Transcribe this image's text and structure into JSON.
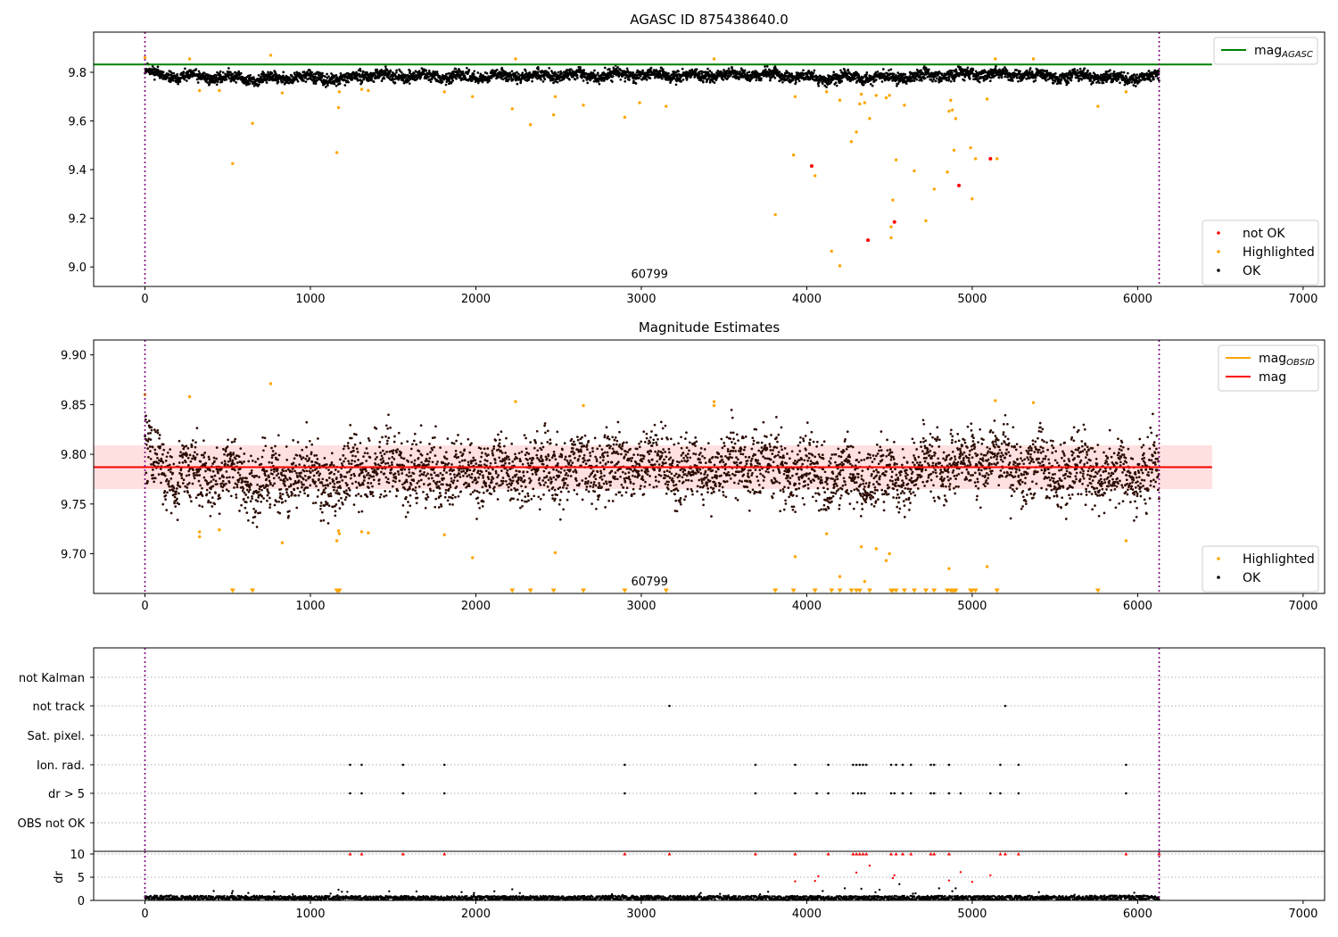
{
  "chart_data": [
    {
      "type": "scatter",
      "title": "AGASC ID 875438640.0",
      "xlim": [
        -310,
        7130
      ],
      "ylim": [
        8.92,
        9.965
      ],
      "xticks": [
        0,
        1000,
        2000,
        3000,
        4000,
        5000,
        6000,
        7000
      ],
      "xtick_labels": [
        "0",
        "1000",
        "2000",
        "3000",
        "4000",
        "5000",
        "6000",
        "7000"
      ],
      "yticks": [
        9.0,
        9.2,
        9.4,
        9.6,
        9.8
      ],
      "ytick_labels": [
        "9.0",
        "9.2",
        "9.4",
        "9.6",
        "9.8"
      ],
      "obs_lines": [
        0,
        6130
      ],
      "annotation": {
        "text": "60799",
        "x": 3050,
        "y": 8.955
      },
      "mag_agasc": 9.832,
      "mag_agasc_color": "#008000",
      "legend_top": [
        {
          "label": "mag",
          "sub": "AGASC",
          "color": "#008000"
        }
      ],
      "legend_bottom": [
        {
          "label": "not OK",
          "color": "#ff0000"
        },
        {
          "label": "Highlighted",
          "color": "#ffa500"
        },
        {
          "label": "OK",
          "color": "#000000"
        }
      ],
      "ok_trend": {
        "x": [
          0,
          100,
          300,
          500,
          700,
          900,
          1100,
          1200,
          1300,
          1500,
          1700,
          1900,
          2100,
          2300,
          2500,
          2700,
          2900,
          3100,
          3300,
          3500,
          3700,
          3900,
          4100,
          4300,
          4500,
          4700,
          4900,
          5100,
          5300,
          5500,
          5700,
          5900,
          6130
        ],
        "y": [
          9.81,
          9.785,
          9.78,
          9.78,
          9.77,
          9.78,
          9.775,
          9.765,
          9.79,
          9.785,
          9.785,
          9.78,
          9.785,
          9.785,
          9.79,
          9.785,
          9.79,
          9.79,
          9.785,
          9.79,
          9.79,
          9.785,
          9.775,
          9.78,
          9.775,
          9.785,
          9.79,
          9.795,
          9.79,
          9.78,
          9.785,
          9.775,
          9.785
        ]
      },
      "highlighted": [
        [
          0,
          9.86
        ],
        [
          270,
          9.855
        ],
        [
          330,
          9.725
        ],
        [
          450,
          9.725
        ],
        [
          530,
          9.425
        ],
        [
          650,
          9.59
        ],
        [
          760,
          9.87
        ],
        [
          830,
          9.715
        ],
        [
          1160,
          9.47
        ],
        [
          1170,
          9.655
        ],
        [
          1175,
          9.72
        ],
        [
          1310,
          9.73
        ],
        [
          1350,
          9.725
        ],
        [
          1810,
          9.72
        ],
        [
          1980,
          9.7
        ],
        [
          2220,
          9.65
        ],
        [
          2240,
          9.855
        ],
        [
          2330,
          9.585
        ],
        [
          2470,
          9.625
        ],
        [
          2480,
          9.7
        ],
        [
          2650,
          9.665
        ],
        [
          2900,
          9.615
        ],
        [
          2990,
          9.675
        ],
        [
          3150,
          9.66
        ],
        [
          3440,
          9.855
        ],
        [
          3810,
          9.215
        ],
        [
          3920,
          9.46
        ],
        [
          3930,
          9.7
        ],
        [
          4050,
          9.375
        ],
        [
          4120,
          9.72
        ],
        [
          4150,
          9.065
        ],
        [
          4200,
          9.005
        ],
        [
          4200,
          9.685
        ],
        [
          4270,
          9.515
        ],
        [
          4300,
          9.555
        ],
        [
          4320,
          9.67
        ],
        [
          4330,
          9.71
        ],
        [
          4350,
          9.675
        ],
        [
          4380,
          9.61
        ],
        [
          4420,
          9.705
        ],
        [
          4480,
          9.695
        ],
        [
          4500,
          9.705
        ],
        [
          4510,
          9.165
        ],
        [
          4510,
          9.12
        ],
        [
          4520,
          9.275
        ],
        [
          4540,
          9.44
        ],
        [
          4590,
          9.665
        ],
        [
          4650,
          9.395
        ],
        [
          4720,
          9.19
        ],
        [
          4770,
          9.32
        ],
        [
          4850,
          9.39
        ],
        [
          4860,
          9.64
        ],
        [
          4870,
          9.685
        ],
        [
          4880,
          9.645
        ],
        [
          4890,
          9.48
        ],
        [
          4900,
          9.61
        ],
        [
          4990,
          9.49
        ],
        [
          5000,
          9.28
        ],
        [
          5020,
          9.445
        ],
        [
          5090,
          9.69
        ],
        [
          5140,
          9.855
        ],
        [
          5150,
          9.445
        ],
        [
          5370,
          9.855
        ],
        [
          5760,
          9.66
        ],
        [
          5930,
          9.72
        ]
      ],
      "not_ok": [
        [
          4030,
          9.415
        ],
        [
          4370,
          9.11
        ],
        [
          4530,
          9.185
        ],
        [
          4920,
          9.335
        ],
        [
          5110,
          9.445
        ]
      ]
    },
    {
      "type": "scatter",
      "title": "Magnitude Estimates",
      "xlim": [
        -310,
        7130
      ],
      "ylim": [
        9.66,
        9.915
      ],
      "xticks": [
        0,
        1000,
        2000,
        3000,
        4000,
        5000,
        6000,
        7000
      ],
      "xtick_labels": [
        "0",
        "1000",
        "2000",
        "3000",
        "4000",
        "5000",
        "6000",
        "7000"
      ],
      "yticks": [
        9.7,
        9.75,
        9.8,
        9.85,
        9.9
      ],
      "ytick_labels": [
        "9.70",
        "9.75",
        "9.80",
        "9.85",
        "9.90"
      ],
      "obs_lines": [
        0,
        6130
      ],
      "annotation": {
        "text": "60799",
        "x": 3050,
        "y": 9.668
      },
      "mag": 9.787,
      "mag_band": [
        9.765,
        9.809
      ],
      "mag_color": "#ff0000",
      "band_color": "#ffa5a5",
      "legend_top": [
        {
          "label": "mag",
          "sub": "OBSID",
          "color": "#ffa500"
        },
        {
          "label": "mag",
          "color": "#ff0000"
        }
      ],
      "legend_bottom": [
        {
          "label": "Highlighted",
          "color": "#ffa500"
        },
        {
          "label": "OK",
          "color": "#000000"
        }
      ],
      "ok_trend": {
        "x": [
          0,
          100,
          300,
          500,
          700,
          900,
          1100,
          1200,
          1300,
          1500,
          1700,
          1900,
          2100,
          2300,
          2500,
          2700,
          2900,
          3100,
          3300,
          3500,
          3700,
          3900,
          4100,
          4300,
          4500,
          4700,
          4900,
          5100,
          5300,
          5500,
          5700,
          5900,
          6130
        ],
        "y": [
          9.81,
          9.785,
          9.78,
          9.78,
          9.77,
          9.78,
          9.775,
          9.765,
          9.79,
          9.785,
          9.785,
          9.78,
          9.785,
          9.785,
          9.79,
          9.785,
          9.79,
          9.79,
          9.785,
          9.79,
          9.79,
          9.785,
          9.775,
          9.78,
          9.775,
          9.785,
          9.79,
          9.795,
          9.79,
          9.78,
          9.785,
          9.775,
          9.785
        ]
      },
      "highlighted": [
        [
          0,
          9.86
        ],
        [
          270,
          9.858
        ],
        [
          330,
          9.722
        ],
        [
          330,
          9.717
        ],
        [
          450,
          9.724
        ],
        [
          760,
          9.871
        ],
        [
          830,
          9.711
        ],
        [
          1160,
          9.713
        ],
        [
          1170,
          9.723
        ],
        [
          1175,
          9.72
        ],
        [
          1310,
          9.722
        ],
        [
          1350,
          9.721
        ],
        [
          1810,
          9.719
        ],
        [
          1980,
          9.696
        ],
        [
          2240,
          9.853
        ],
        [
          2480,
          9.701
        ],
        [
          2650,
          9.849
        ],
        [
          3440,
          9.849
        ],
        [
          3440,
          9.853
        ],
        [
          3930,
          9.697
        ],
        [
          4120,
          9.72
        ],
        [
          4200,
          9.677
        ],
        [
          4330,
          9.707
        ],
        [
          4350,
          9.672
        ],
        [
          4420,
          9.705
        ],
        [
          4480,
          9.693
        ],
        [
          4500,
          9.7
        ],
        [
          4860,
          9.685
        ],
        [
          5090,
          9.687
        ],
        [
          5140,
          9.854
        ],
        [
          5370,
          9.852
        ],
        [
          5930,
          9.713
        ]
      ],
      "clipped": [
        530,
        650,
        1160,
        1170,
        1175,
        2220,
        2330,
        2470,
        2650,
        2900,
        3150,
        3810,
        3920,
        4050,
        4150,
        4200,
        4270,
        4300,
        4320,
        4380,
        4510,
        4520,
        4540,
        4590,
        4650,
        4720,
        4770,
        4850,
        4870,
        4880,
        4890,
        4900,
        4990,
        5000,
        5020,
        5150,
        5760
      ]
    },
    {
      "type": "scatter",
      "title": "",
      "xlim": [
        -310,
        7130
      ],
      "xticks": [
        0,
        1000,
        2000,
        3000,
        4000,
        5000,
        6000,
        7000
      ],
      "xtick_labels": [
        "0",
        "1000",
        "2000",
        "3000",
        "4000",
        "5000",
        "6000",
        "7000"
      ],
      "obs_lines": [
        0,
        6130
      ],
      "flag_rows": [
        "not Kalman",
        "not track",
        "Sat. pixel.",
        "Ion. rad.",
        "dr > 5",
        "OBS not OK"
      ],
      "flags": {
        "not track": [
          3170,
          5200
        ],
        "Ion. rad.": [
          1240,
          1310,
          1560,
          1810,
          2900,
          3690,
          3930,
          4130,
          4280,
          4300,
          4320,
          4340,
          4360,
          4510,
          4540,
          4580,
          4630,
          4750,
          4770,
          4860,
          5170,
          5280,
          5930
        ],
        "dr > 5": [
          1240,
          1310,
          1560,
          1810,
          2900,
          3690,
          3930,
          4060,
          4130,
          4280,
          4310,
          4330,
          4350,
          4510,
          4530,
          4580,
          4630,
          4750,
          4770,
          4860,
          4930,
          5110,
          5170,
          5280,
          5930
        ]
      },
      "dr_ylabel": "dr",
      "dr_ylim": [
        0,
        10
      ],
      "dr_yticks": [
        0,
        5,
        10
      ],
      "dr_ytick_labels": [
        "0",
        "5",
        "10"
      ],
      "dr_capped": [
        1240,
        1310,
        1560,
        1810,
        2900,
        3170,
        3690,
        3930,
        4130,
        4280,
        4300,
        4320,
        4340,
        4360,
        4510,
        4540,
        4580,
        4630,
        4750,
        4770,
        4860,
        5170,
        5200,
        5280,
        5930,
        6130
      ],
      "dr_outliers": [
        [
          530,
          2.0
        ],
        [
          1170,
          2.3
        ],
        [
          2220,
          2.4
        ],
        [
          3930,
          4.1
        ],
        [
          4050,
          4.2
        ],
        [
          4070,
          5.2
        ],
        [
          4230,
          2.6
        ],
        [
          4300,
          6.0
        ],
        [
          4330,
          2.5
        ],
        [
          4380,
          7.5
        ],
        [
          4440,
          2.3
        ],
        [
          4520,
          4.8
        ],
        [
          4530,
          5.4
        ],
        [
          4560,
          3.5
        ],
        [
          4800,
          2.6
        ],
        [
          4860,
          4.3
        ],
        [
          4900,
          2.6
        ],
        [
          4930,
          6.1
        ],
        [
          5000,
          4.0
        ],
        [
          5110,
          5.4
        ]
      ],
      "dr_low_trend": {
        "x": [
          0,
          1000,
          2000,
          3000,
          4000,
          5000,
          6130
        ],
        "y": [
          0.6,
          0.5,
          0.5,
          0.55,
          0.5,
          0.55,
          0.6
        ]
      }
    }
  ]
}
